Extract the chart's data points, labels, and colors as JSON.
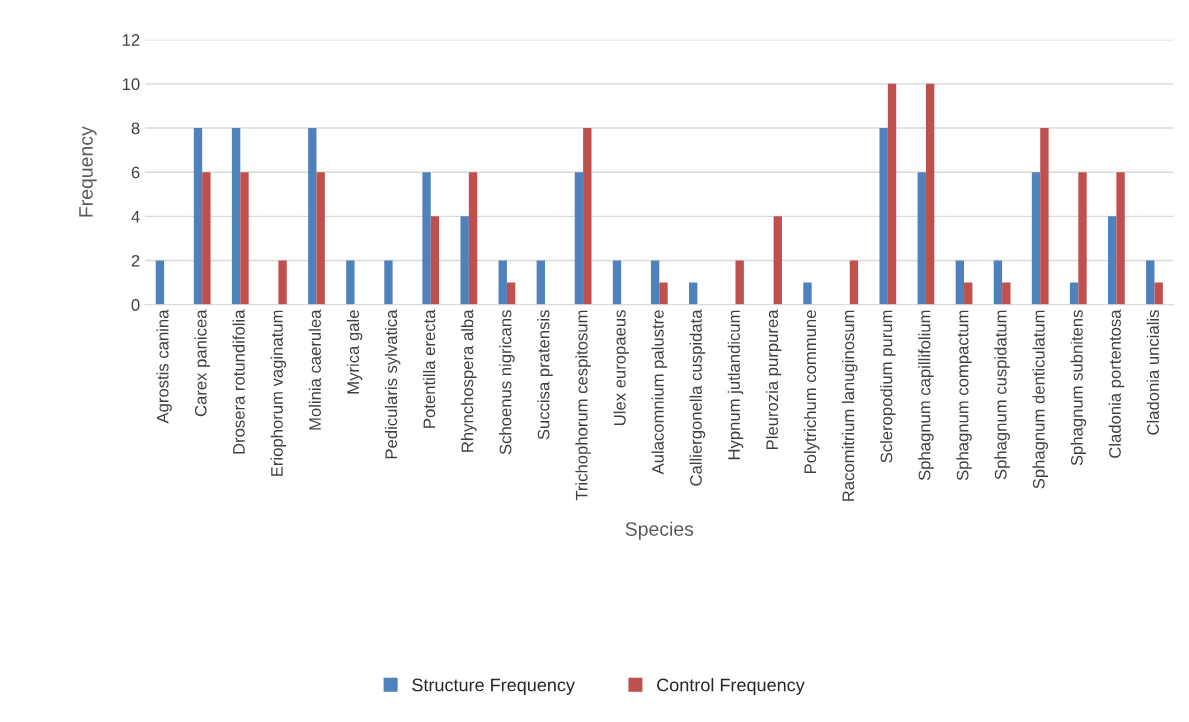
{
  "chart_data": {
    "type": "bar",
    "xlabel": "Species",
    "ylabel": "Frequency",
    "categories": [
      "Agrostis canina",
      "Carex panicea",
      "Drosera rotundifolia",
      "Eriophorum vaginatum",
      "Molinia caerulea",
      "Myrica gale",
      "Pedicularis sylvatica",
      "Potentilla erecta",
      "Rhynchospera alba",
      "Schoenus nigricans",
      "Succisa pratensis",
      "Trichophorum cespitosum",
      "Ulex europaeus",
      "Aulacomnium palustre",
      "Calliergonella cuspidata",
      "Hypnum jutlandicum",
      "Pleurozia purpurea",
      "Polytrichum commune",
      "Racomitrium lanuginosum",
      "Scleropodium purum",
      "Sphagnum capillifolium",
      "Sphagnum compactum",
      "Sphagnum cuspidatum",
      "Sphagnum denticulatum",
      "Sphagnum subnitens",
      "Cladonia portentosa",
      "Cladonia uncialis"
    ],
    "series": [
      {
        "name": "Structure Frequency",
        "color": "#4f81bd",
        "values": [
          2,
          8,
          8,
          null,
          8,
          2,
          2,
          6,
          4,
          2,
          2,
          6,
          2,
          2,
          1,
          null,
          null,
          1,
          null,
          8,
          6,
          2,
          2,
          6,
          1,
          4,
          2
        ]
      },
      {
        "name": "Control Frequency",
        "color": "#c0504d",
        "values": [
          null,
          6,
          6,
          2,
          6,
          null,
          null,
          4,
          6,
          1,
          null,
          8,
          null,
          1,
          null,
          2,
          4,
          null,
          2,
          10,
          10,
          1,
          1,
          8,
          6,
          6,
          1
        ]
      }
    ],
    "ylim": [
      0,
      12
    ],
    "yticks": [
      0,
      2,
      4,
      6,
      8,
      10,
      12
    ],
    "grid": "y",
    "legend": "bottom"
  }
}
